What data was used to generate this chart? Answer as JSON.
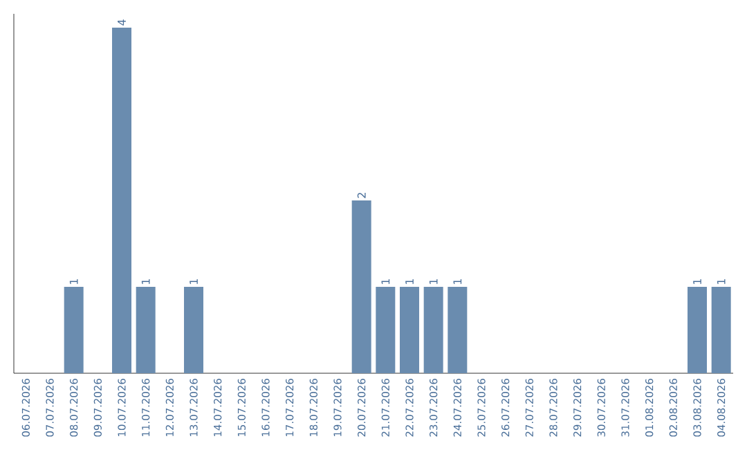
{
  "chart_data": {
    "type": "bar",
    "categories": [
      "06.07.2026",
      "07.07.2026",
      "08.07.2026",
      "09.07.2026",
      "10.07.2026",
      "11.07.2026",
      "12.07.2026",
      "13.07.2026",
      "14.07.2026",
      "15.07.2026",
      "16.07.2026",
      "17.07.2026",
      "18.07.2026",
      "19.07.2026",
      "20.07.2026",
      "21.07.2026",
      "22.07.2026",
      "23.07.2026",
      "24.07.2026",
      "25.07.2026",
      "26.07.2026",
      "27.07.2026",
      "28.07.2026",
      "29.07.2026",
      "30.07.2026",
      "31.07.2026",
      "01.08.2026",
      "02.08.2026",
      "03.08.2026",
      "04.08.2026"
    ],
    "values": [
      0,
      0,
      1,
      0,
      4,
      1,
      0,
      1,
      0,
      0,
      0,
      0,
      0,
      0,
      2,
      1,
      1,
      1,
      1,
      0,
      0,
      0,
      0,
      0,
      0,
      0,
      0,
      0,
      1,
      1
    ],
    "value_labels": [
      null,
      null,
      "1",
      null,
      "4",
      "1",
      null,
      "1",
      null,
      null,
      null,
      null,
      null,
      null,
      "2",
      "1",
      "1",
      "1",
      "1",
      null,
      null,
      null,
      null,
      null,
      null,
      null,
      null,
      null,
      "1",
      "1"
    ],
    "color": "#6a8caf"
  }
}
